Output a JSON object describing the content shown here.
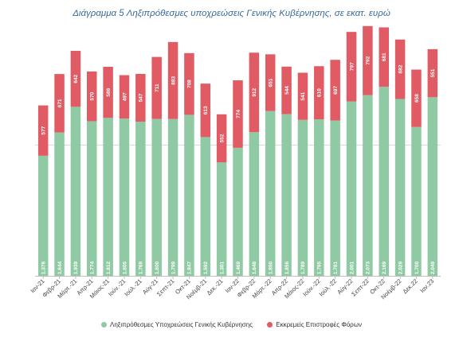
{
  "title": "Διάγραμμα 5 Ληξιπρόθεσμες υποχρεώσεις Γενικής Κυβέρνησης, σε εκατ. ευρώ",
  "colors": {
    "series1": "#8fcaa4",
    "series2": "#e05b63",
    "gridline": "#d9d9d9",
    "axis": "#bfbfbf"
  },
  "chart_data": {
    "type": "bar",
    "stacked": true,
    "categories": [
      "Ιαν-21",
      "Φεβρ-21",
      "Μάρτ.-21",
      "Απρ-21",
      "Μάιος-21",
      "Ιούν.-21",
      "Ιούλ.-21",
      "Αύγ-21",
      "Σεπτ-21",
      "Οκτ-21",
      "Νοέμβ-21",
      "Δεκ.-21",
      "Ιαν-22",
      "Φεβρ-22",
      "Μάρτ.-22",
      "Απρ-22",
      "Μάιος-22",
      "Ιούν.-22",
      "Ιούλ.-22",
      "Αύγ-22",
      "Σεπτ-22",
      "Οκτ-22",
      "Νοέμβ-22",
      "Δεκ.22",
      "Ιαν.23"
    ],
    "series": [
      {
        "name": "Ληξιπρόθεσμες Υποχρεώσεις Γενικής Κυβέρνησης",
        "values": [
          1378,
          1644,
          1939,
          1774,
          1812,
          1805,
          1769,
          1800,
          1799,
          1847,
          1592,
          1301,
          1469,
          1648,
          1890,
          1856,
          1789,
          1795,
          1781,
          2001,
          2073,
          2169,
          2029,
          1708,
          2049
        ],
        "labels": [
          "1.378",
          "1.644",
          "1.939",
          "1.774",
          "1.812",
          "1.805",
          "1.769",
          "1.800",
          "1.799",
          "1.847",
          "1.592",
          "1.301",
          "1.469",
          "1.648",
          "1.890",
          "1.856",
          "1.789",
          "1.795",
          "1.781",
          "2.001",
          "2.073",
          "2.169",
          "2.029",
          "1.708",
          "2.049"
        ]
      },
      {
        "name": "Εκκρεμείς Επιστροφές Φόρων",
        "values": [
          577,
          671,
          642,
          570,
          586,
          497,
          547,
          711,
          883,
          708,
          613,
          552,
          774,
          912,
          651,
          544,
          541,
          610,
          697,
          797,
          792,
          681,
          682,
          658,
          551
        ],
        "labels": [
          "577",
          "671",
          "642",
          "570",
          "586",
          "497",
          "547",
          "711",
          "883",
          "708",
          "613",
          "552",
          "774",
          "912",
          "651",
          "544",
          "541",
          "610",
          "697",
          "797",
          "792",
          "681",
          "682",
          "658",
          "551"
        ]
      }
    ],
    "ylim": [
      0,
      3000
    ],
    "gridlines": [
      1500
    ],
    "legend": "bottom"
  }
}
